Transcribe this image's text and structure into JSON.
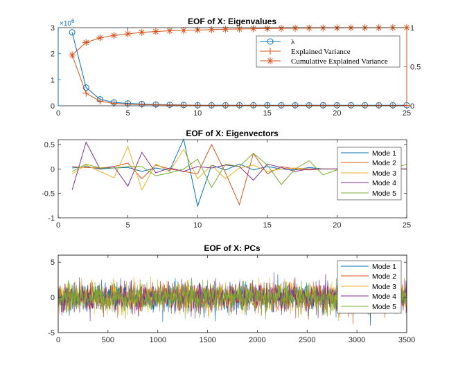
{
  "colors": {
    "blue": "#0072BD",
    "orange": "#D95319",
    "yellow": "#EDB120",
    "purple": "#7E2F8E",
    "green": "#77AC30",
    "axis": "#262626"
  },
  "chart_data": [
    {
      "type": "line",
      "title": "EOF of X: Eigenvalues",
      "x": [
        1,
        2,
        3,
        4,
        5,
        6,
        7,
        8,
        9,
        10,
        11,
        12,
        13,
        14,
        15,
        16,
        17,
        18,
        19,
        20,
        21,
        22,
        23,
        24,
        25
      ],
      "xlim": [
        0,
        25
      ],
      "xticks": [
        "0",
        "5",
        "10",
        "15",
        "20",
        "25"
      ],
      "ylim_left": [
        0,
        3
      ],
      "yticks_left": [
        "0",
        "1",
        "2",
        "3"
      ],
      "left_exponent": "×10",
      "left_exponent_power": "6",
      "ylim_right": [
        0,
        1
      ],
      "yticks_right": [
        "0",
        "0.5",
        "1"
      ],
      "legend_position": "top-right",
      "series": [
        {
          "name": "λ",
          "axis": "left",
          "marker": "circle",
          "color": "blue",
          "values": [
            2.82,
            0.7,
            0.25,
            0.13,
            0.09,
            0.07,
            0.05,
            0.04,
            0.03,
            0.02,
            0.02,
            0.02,
            0.02,
            0.02,
            0.02,
            0.02,
            0.02,
            0.02,
            0.02,
            0.02,
            0.02,
            0.02,
            0.02,
            0.02,
            0.02
          ]
        },
        {
          "name": "Explained Variance",
          "axis": "right",
          "marker": "plus",
          "color": "orange",
          "values": [
            0.65,
            0.16,
            0.06,
            0.03,
            0.02,
            0.016,
            0.012,
            0.01,
            0.008,
            0.007,
            0.006,
            0.005,
            0.005,
            0.005,
            0.004,
            0.004,
            0.004,
            0.004,
            0.004,
            0.004,
            0.003,
            0.003,
            0.003,
            0.003,
            0.003
          ]
        },
        {
          "name": "Cumulative Explained Variance",
          "axis": "right",
          "marker": "star",
          "color": "orange",
          "values": [
            0.65,
            0.81,
            0.87,
            0.9,
            0.92,
            0.94,
            0.95,
            0.96,
            0.965,
            0.97,
            0.975,
            0.98,
            0.983,
            0.986,
            0.989,
            0.991,
            0.993,
            0.995,
            0.996,
            0.997,
            0.998,
            0.999,
            0.999,
            1.0,
            1.0
          ]
        }
      ]
    },
    {
      "type": "line",
      "title": "EOF of X: Eigenvectors",
      "x": [
        1,
        2,
        3,
        4,
        5,
        6,
        7,
        8,
        9,
        10,
        11,
        12,
        13,
        14,
        15,
        16,
        17,
        18,
        19,
        20,
        21,
        22,
        23,
        24,
        25
      ],
      "xlim": [
        0,
        25
      ],
      "xticks": [
        "0",
        "5",
        "10",
        "15",
        "20",
        "25"
      ],
      "ylim": [
        -1,
        0.6
      ],
      "yticks": [
        "-1",
        "-0.5",
        "0",
        "0.5"
      ],
      "legend_position": "right",
      "series": [
        {
          "name": "Mode 1",
          "color": "blue",
          "values": [
            0.02,
            0.05,
            0.0,
            0.02,
            0.03,
            -0.05,
            0.02,
            -0.03,
            0.61,
            -0.76,
            0.08,
            -0.02,
            0.1,
            -0.02,
            0.05,
            0.0,
            -0.02,
            0.03,
            0.0,
            0.0,
            0.0,
            0.0,
            0.0,
            0.0,
            0.0
          ]
        },
        {
          "name": "Mode 2",
          "color": "orange",
          "values": [
            0.05,
            0.03,
            0.02,
            0.05,
            0.12,
            -0.2,
            0.08,
            0.0,
            -0.05,
            -0.1,
            0.5,
            -0.08,
            -0.73,
            0.32,
            -0.1,
            0.05,
            0.0,
            -0.02,
            0.0,
            0.0,
            0.0,
            0.0,
            0.0,
            0.0,
            0.0
          ]
        },
        {
          "name": "Mode 3",
          "color": "yellow",
          "values": [
            -0.1,
            0.08,
            -0.05,
            -0.18,
            0.46,
            -0.43,
            0.1,
            -0.05,
            0.4,
            -0.2,
            0.08,
            -0.2,
            0.02,
            0.08,
            -0.05,
            0.0,
            0.02,
            0.0,
            0.0,
            0.0,
            0.0,
            0.0,
            0.0,
            0.0,
            0.0
          ]
        },
        {
          "name": "Mode 4",
          "color": "purple",
          "values": [
            -0.43,
            0.55,
            0.0,
            0.05,
            -0.35,
            0.34,
            -0.08,
            0.02,
            -0.05,
            0.05,
            0.02,
            0.08,
            0.05,
            -0.23,
            0.1,
            0.03,
            -0.05,
            0.0,
            0.0,
            0.0,
            0.0,
            0.0,
            0.0,
            0.0,
            0.0
          ]
        },
        {
          "name": "Mode 5",
          "color": "green",
          "values": [
            -0.05,
            0.1,
            0.02,
            0.02,
            0.05,
            0.05,
            -0.14,
            -0.08,
            0.0,
            0.2,
            -0.38,
            0.1,
            0.05,
            0.32,
            0.08,
            -0.32,
            0.0,
            0.17,
            -0.12,
            -0.02,
            0.03,
            0.0,
            -0.01,
            0.0,
            0.1
          ]
        }
      ]
    },
    {
      "type": "line",
      "title": "EOF of X: PCs",
      "n_points": 3500,
      "xlim": [
        0,
        3500
      ],
      "xticks": [
        "0",
        "500",
        "1000",
        "1500",
        "2000",
        "2500",
        "3000",
        "3500"
      ],
      "ylim": [
        -5,
        6
      ],
      "yticks": [
        "-5",
        "0",
        "5"
      ],
      "legend_position": "right",
      "series": [
        {
          "name": "Mode 1",
          "color": "blue",
          "std": 1.0
        },
        {
          "name": "Mode 2",
          "color": "orange",
          "std": 1.0
        },
        {
          "name": "Mode 3",
          "color": "yellow",
          "std": 1.0
        },
        {
          "name": "Mode 4",
          "color": "purple",
          "std": 1.0
        },
        {
          "name": "Mode 5",
          "color": "green",
          "std": 1.0
        }
      ]
    }
  ]
}
